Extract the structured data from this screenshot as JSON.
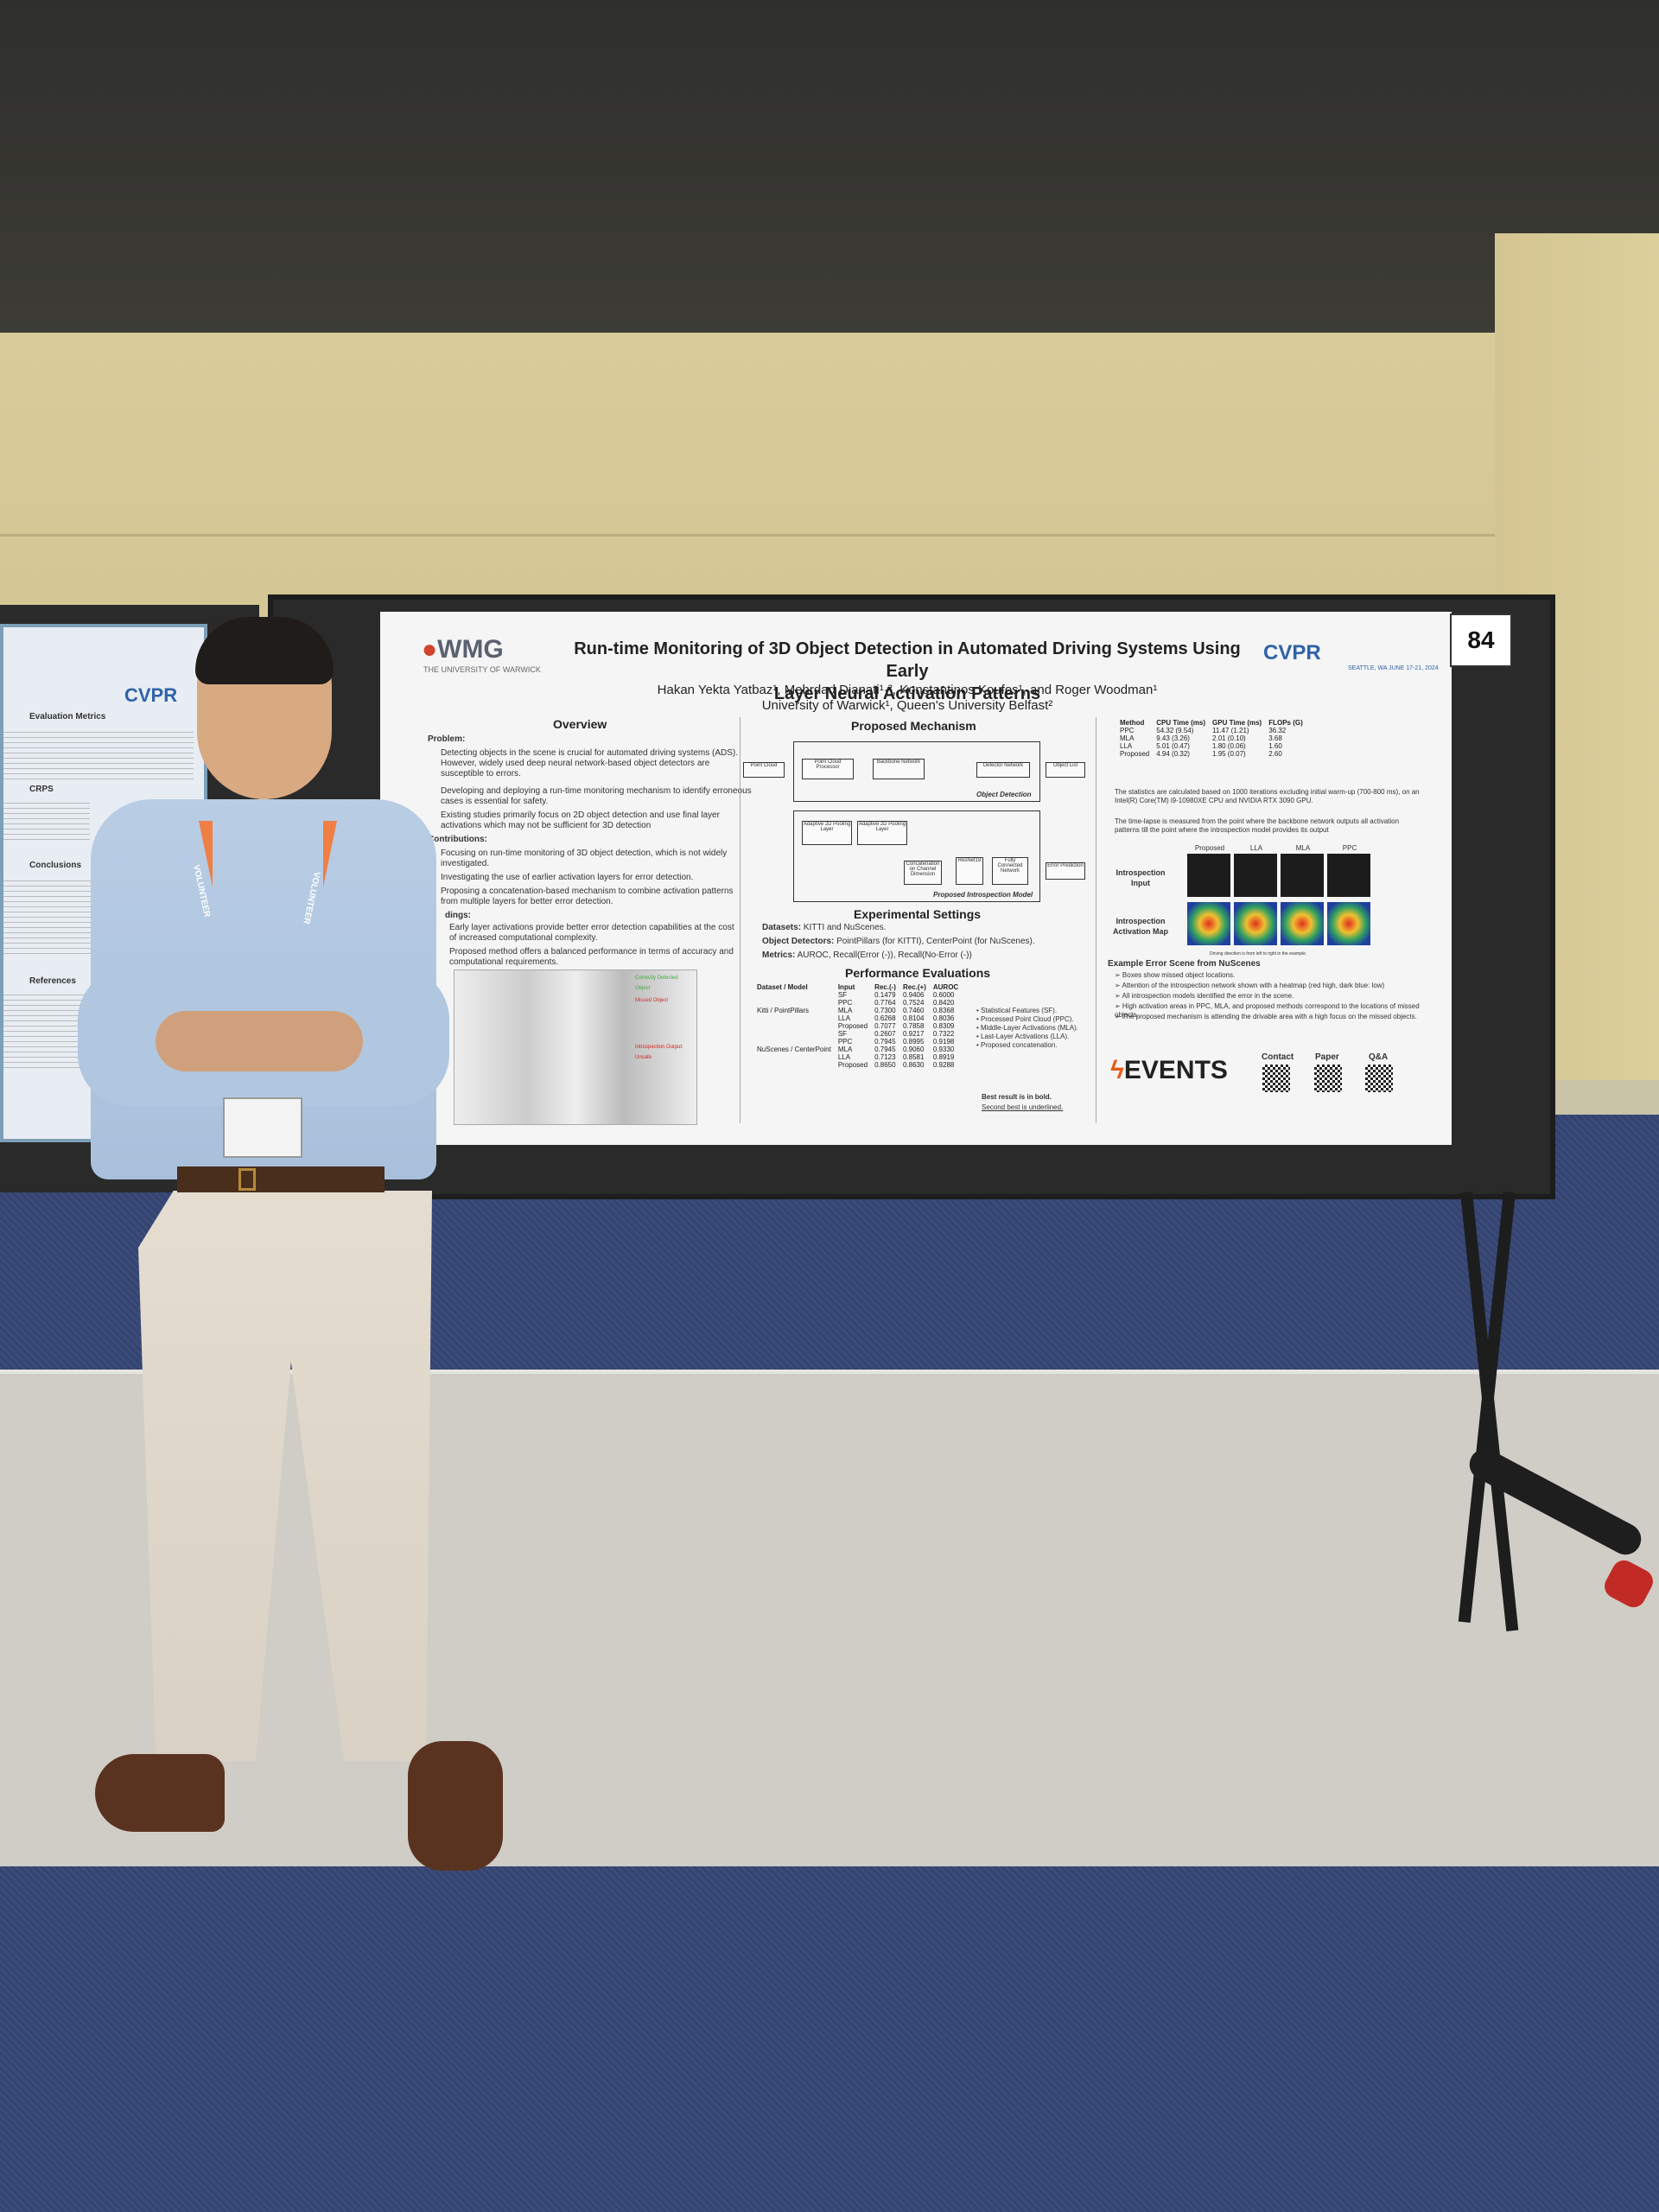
{
  "poster": {
    "logo_left": "WMG",
    "logo_left_sub": "THE UNIVERSITY OF WARWICK",
    "title_line1": "Run-time Monitoring of 3D Object Detection in Automated Driving Systems Using Early",
    "title_line2": "Layer Neural Activation Patterns",
    "authors": "Hakan Yekta Yatbaz¹, Mehrdad Dianati¹·², Konstantinos Koufos¹, and Roger Woodman¹",
    "affiliations": "University of Warwick¹, Queen's University Belfast²",
    "logo_right": "CVPR",
    "logo_right_sub": "SEATTLE, WA JUNE 17-21, 2024",
    "board_number": "84",
    "overview": {
      "heading": "Overview",
      "problem_label": "Problem:",
      "problem_items": [
        "Detecting objects in the scene is crucial for automated driving systems (ADS). However, widely used deep neural network-based object detectors are susceptible to errors.",
        "Developing and deploying a run-time monitoring mechanism to identify erroneous cases is essential for safety.",
        "Existing studies primarily focus on 2D object detection and use final layer activations which may not be sufficient for 3D detection"
      ],
      "contributions_label": "Contributions:",
      "contributions_items": [
        "Focusing on run-time monitoring of 3D object detection, which is not widely investigated.",
        "Investigating the use of earlier activation layers for error detection.",
        "Proposing a concatenation-based mechanism to combine activation patterns from multiple layers for better error detection."
      ],
      "findings_label": "dings:",
      "findings_items": [
        "Early layer activations provide better error detection capabilities at the cost of increased computational complexity.",
        "Proposed method offers a balanced performance in terms of accuracy and computational requirements."
      ],
      "legend_correct": "Correctly Detected Object",
      "legend_missed": "Missed Object",
      "introspection_output": "Introspection Output: Unsafe"
    },
    "mechanism": {
      "heading": "Proposed Mechanism",
      "boxes": [
        "Point Cloud",
        "Point Cloud Processor",
        "Backbone Network",
        "Detector Network",
        "Object List",
        "Adaptive 2D Pooling Layer",
        "Adaptive 2D Pooling Layer",
        "Concatenation on Channel Dimension",
        "ResNet18",
        "Fully Connected Network",
        "Error Prediction"
      ],
      "label_detection": "Object Detection",
      "label_introspection": "Proposed Introspection Model"
    },
    "settings": {
      "heading": "Experimental Settings",
      "datasets_label": "Datasets:",
      "datasets": "KITTI and NuScenes.",
      "detectors_label": "Object Detectors:",
      "detectors": "PointPillars (for KITTI), CenterPoint (for NuScenes).",
      "metrics_label": "Metrics:",
      "metrics": "AUROC, Recall(Error (-)), Recall(No-Error (-))"
    },
    "performance": {
      "heading": "Performance Evaluations",
      "columns": [
        "Dataset / Model",
        "Input",
        "Rec.(-)",
        "Rec.(+)",
        "AUROC"
      ],
      "groups": [
        {
          "name": "Kitti / PointPillars",
          "rows": [
            [
              "SF",
              "0.1479",
              "0.9406",
              "0.6000"
            ],
            [
              "PPC",
              "0.7764",
              "0.7524",
              "0.8420"
            ],
            [
              "MLA",
              "0.7300",
              "0.7460",
              "0.8368"
            ],
            [
              "LLA",
              "0.6268",
              "0.8104",
              "0.8036"
            ],
            [
              "Proposed",
              "0.7077",
              "0.7858",
              "0.8309"
            ]
          ]
        },
        {
          "name": "NuScenes / CenterPoint",
          "rows": [
            [
              "SF",
              "0.2607",
              "0.9217",
              "0.7322"
            ],
            [
              "PPC",
              "0.7945",
              "0.8995",
              "0.9198"
            ],
            [
              "MLA",
              "0.7945",
              "0.9060",
              "0.9330"
            ],
            [
              "LLA",
              "0.7123",
              "0.8581",
              "0.8919"
            ],
            [
              "Proposed",
              "0.8650",
              "0.8630",
              "0.9288"
            ]
          ]
        }
      ],
      "notes": [
        "Statistical Features (SF).",
        "Processed Point Cloud (PPC).",
        "Middle-Layer Activations (MLA).",
        "Last-Layer Activations (LLA).",
        "Proposed concatenation."
      ],
      "best_note": "Best result is in bold.",
      "second_note": "Second best is underlined."
    },
    "timing": {
      "columns": [
        "Method",
        "CPU Time (ms)",
        "GPU Time (ms)",
        "FLOPs (G)"
      ],
      "rows": [
        [
          "PPC",
          "54.32 (9.54)",
          "11.47 (1.21)",
          "36.32"
        ],
        [
          "MLA",
          "9.43 (3.26)",
          "2.01 (0.10)",
          "3.68"
        ],
        [
          "LLA",
          "5.01 (0.47)",
          "1.80 (0.06)",
          "1.60"
        ],
        [
          "Proposed",
          "4.94 (0.32)",
          "1.95 (0.07)",
          "2.60"
        ]
      ],
      "notes": [
        "The statistics are calculated based on 1000 iterations excluding initial warm-up (700-800 ms), on an Intel(R) Core(TM) i9-10980XE CPU and NVIDIA RTX 3090 GPU.",
        "The time-lapse is measured from the point where the backbone network outputs all activation patterns till the point where the introspection model provides its output"
      ],
      "grid_cols": [
        "Proposed",
        "LLA",
        "MLA",
        "PPC"
      ],
      "grid_rows": [
        "Introspection Input",
        "Introspection Activation Map"
      ],
      "grid_caption": "Driving direction is from left to right in the example."
    },
    "error_scene": {
      "heading": "Example Error Scene from NuScenes",
      "items": [
        "Boxes show missed object locations.",
        "Attention of the introspection network shown with a heatmap (red high, dark blue: low)",
        "All introspection models identified the error in the scene.",
        "High activation areas in PPC, MLA, and proposed methods correspond to the locations of missed objects.",
        "The proposed mechanism is attending the drivable area with a high focus on the missed objects."
      ]
    },
    "footer": {
      "logo": "EVENTS",
      "contact": "Contact",
      "paper": "Paper",
      "qa": "Q&A"
    }
  },
  "left_poster": {
    "logo": "CVPR",
    "section1": "Evaluation Metrics",
    "section2": "CRPS",
    "section3": "Conclusions",
    "section4": "References"
  },
  "badge": {
    "lanyard_text": "VOLUNTEER"
  },
  "colors": {
    "wall": "#d8cc9a",
    "carpet": "#3b4c7a",
    "lanyard": "#ef7f45",
    "cvpr_blue": "#2f63a8",
    "wmg_red": "#d0432c"
  }
}
